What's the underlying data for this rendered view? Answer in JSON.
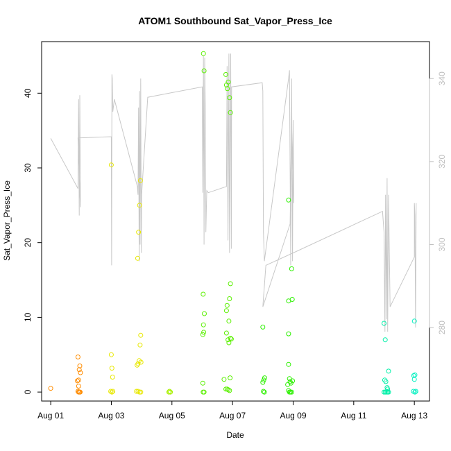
{
  "chart_data": {
    "type": "scatter",
    "title": "ATOM1 Southbound Sat_Vapor_Press_Ice",
    "xlabel": "Date",
    "ylabel": "Sat_Vapor_Press_Ice",
    "x_unit": "days since Aug 01",
    "xlim": [
      -0.3,
      12.5
    ],
    "ylim": [
      -1.2,
      46.9
    ],
    "x_ticks": [
      {
        "value": 0,
        "label": "Aug 01"
      },
      {
        "value": 2,
        "label": "Aug 03"
      },
      {
        "value": 4,
        "label": "Aug 05"
      },
      {
        "value": 6,
        "label": "Aug 07"
      },
      {
        "value": 8,
        "label": "Aug 09"
      },
      {
        "value": 10,
        "label": "Aug 11"
      },
      {
        "value": 12,
        "label": "Aug 13"
      }
    ],
    "y_ticks": [
      0,
      10,
      20,
      30,
      40
    ],
    "right_axis": {
      "ylim": [
        262.3,
        348.9
      ],
      "ticks": [
        280,
        300,
        320,
        340
      ],
      "color": "#bfbfbf"
    },
    "grid": false,
    "legend": "none",
    "scatter_series": [
      {
        "color": "#ff8c00",
        "points": [
          [
            0.0,
            0.5
          ],
          [
            0.9,
            4.7
          ],
          [
            0.88,
            1.5
          ],
          [
            0.92,
            1.6
          ],
          [
            0.92,
            0.8
          ],
          [
            0.94,
            3.0
          ],
          [
            0.96,
            3.5
          ],
          [
            0.98,
            2.6
          ],
          [
            0.9,
            0.1
          ],
          [
            0.92,
            0.0
          ],
          [
            0.95,
            0.0
          ],
          [
            0.97,
            0.0
          ]
        ]
      },
      {
        "color": "#e8e800",
        "points": [
          [
            2.0,
            30.4
          ],
          [
            2.0,
            5.0
          ],
          [
            2.02,
            3.2
          ],
          [
            2.04,
            2.0
          ],
          [
            1.98,
            0.1
          ],
          [
            2.02,
            0.0
          ],
          [
            2.05,
            0.1
          ],
          [
            2.87,
            17.9
          ],
          [
            2.9,
            21.4
          ],
          [
            2.93,
            25.0
          ],
          [
            2.96,
            28.3
          ],
          [
            2.85,
            3.6
          ],
          [
            2.88,
            3.8
          ],
          [
            2.92,
            4.2
          ],
          [
            2.98,
            4.0
          ],
          [
            2.95,
            6.3
          ],
          [
            2.97,
            7.6
          ],
          [
            2.83,
            0.1
          ],
          [
            2.88,
            0.1
          ],
          [
            2.93,
            0.0
          ],
          [
            2.97,
            0.0
          ]
        ]
      },
      {
        "color": "#a8f000",
        "points": [
          [
            3.92,
            0.1
          ],
          [
            3.95,
            0.0
          ],
          [
            3.9,
            0.0
          ]
        ]
      },
      {
        "color": "#5af000",
        "points": [
          [
            5.04,
            45.3
          ],
          [
            5.06,
            43.0
          ],
          [
            5.03,
            13.1
          ],
          [
            5.04,
            9.0
          ],
          [
            5.07,
            10.5
          ],
          [
            5.02,
            7.7
          ],
          [
            5.05,
            8.0
          ],
          [
            5.02,
            1.2
          ],
          [
            5.03,
            0.0
          ],
          [
            5.06,
            0.0
          ],
          [
            5.78,
            42.5
          ],
          [
            5.8,
            41.1
          ],
          [
            5.83,
            40.6
          ],
          [
            5.86,
            41.5
          ],
          [
            5.9,
            39.4
          ],
          [
            5.93,
            37.4
          ],
          [
            5.8,
            10.9
          ],
          [
            5.82,
            11.6
          ],
          [
            5.8,
            7.9
          ],
          [
            5.88,
            9.5
          ],
          [
            5.9,
            12.5
          ],
          [
            5.93,
            14.5
          ],
          [
            5.85,
            7.0
          ],
          [
            5.88,
            6.6
          ],
          [
            5.93,
            7.2
          ],
          [
            5.96,
            7.1
          ],
          [
            5.72,
            1.7
          ],
          [
            5.92,
            1.9
          ],
          [
            5.78,
            0.4
          ],
          [
            5.82,
            0.4
          ],
          [
            5.86,
            0.3
          ],
          [
            5.9,
            0.2
          ]
        ]
      },
      {
        "color": "#2cf000",
        "points": [
          [
            7.0,
            8.7
          ],
          [
            7.0,
            1.3
          ],
          [
            7.03,
            1.6
          ],
          [
            7.06,
            1.9
          ],
          [
            7.02,
            0.1
          ],
          [
            7.05,
            0.0
          ],
          [
            7.85,
            25.7
          ],
          [
            7.95,
            16.5
          ],
          [
            7.85,
            12.2
          ],
          [
            7.97,
            12.4
          ],
          [
            7.85,
            7.8
          ],
          [
            7.85,
            3.7
          ],
          [
            7.82,
            1.0
          ],
          [
            7.88,
            1.8
          ],
          [
            7.9,
            1.4
          ],
          [
            7.93,
            1.2
          ],
          [
            7.98,
            1.5
          ],
          [
            7.85,
            0.2
          ],
          [
            7.88,
            0.0
          ],
          [
            7.91,
            0.0
          ],
          [
            7.95,
            0.0
          ]
        ]
      },
      {
        "color": "#00f0a8",
        "points": [
          [
            11.0,
            9.2
          ],
          [
            11.04,
            7.0
          ],
          [
            11.15,
            2.8
          ],
          [
            11.02,
            1.6
          ],
          [
            11.06,
            1.4
          ],
          [
            11.1,
            0.6
          ],
          [
            11.12,
            0.4
          ],
          [
            11.0,
            0.0
          ],
          [
            11.04,
            0.0
          ],
          [
            11.08,
            0.0
          ],
          [
            11.12,
            0.0
          ],
          [
            11.15,
            0.0
          ]
        ]
      },
      {
        "color": "#00f0c0",
        "points": [
          [
            12.0,
            9.5
          ],
          [
            11.98,
            2.2
          ],
          [
            12.02,
            2.3
          ],
          [
            12.0,
            1.7
          ],
          [
            11.97,
            0.1
          ],
          [
            12.02,
            0.0
          ],
          [
            12.05,
            0.1
          ]
        ]
      }
    ],
    "right_line": [
      [
        0.0,
        325.6
      ],
      [
        0.9,
        313.5
      ],
      [
        0.92,
        335.0
      ],
      [
        0.94,
        307.0
      ],
      [
        0.96,
        336.0
      ],
      [
        0.98,
        309.0
      ],
      [
        0.9,
        325.7
      ],
      [
        2.0,
        326.0
      ],
      [
        2.01,
        295.0
      ],
      [
        2.02,
        341.0
      ],
      [
        2.03,
        340.0
      ],
      [
        2.05,
        332.0
      ],
      [
        2.1,
        335.0
      ],
      [
        2.86,
        314.0
      ],
      [
        2.88,
        312.0
      ],
      [
        2.9,
        333.0
      ],
      [
        2.92,
        296.0
      ],
      [
        2.93,
        337.0
      ],
      [
        2.95,
        300.0
      ],
      [
        2.97,
        340.0
      ],
      [
        2.99,
        298.0
      ],
      [
        3.0,
        312.0
      ],
      [
        3.2,
        335.5
      ],
      [
        5.0,
        338.0
      ],
      [
        5.02,
        312.5
      ],
      [
        5.04,
        345.5
      ],
      [
        5.06,
        300.0
      ],
      [
        5.08,
        345.0
      ],
      [
        5.1,
        333.0
      ],
      [
        5.12,
        303.0
      ],
      [
        5.15,
        313.0
      ],
      [
        5.2,
        312.5
      ],
      [
        5.8,
        314.0
      ],
      [
        5.82,
        343.0
      ],
      [
        5.85,
        301.0
      ],
      [
        5.88,
        346.0
      ],
      [
        5.9,
        298.0
      ],
      [
        5.94,
        346.0
      ],
      [
        5.96,
        299.0
      ],
      [
        5.97,
        338.0
      ],
      [
        6.98,
        339.0
      ],
      [
        7.0,
        337.0
      ],
      [
        7.02,
        303.0
      ],
      [
        7.05,
        296.0
      ],
      [
        7.85,
        340.0
      ],
      [
        7.88,
        342.0
      ],
      [
        7.92,
        295.0
      ],
      [
        7.95,
        340.0
      ],
      [
        7.98,
        296.0
      ],
      [
        8.0,
        330.0
      ],
      [
        8.02,
        310.0
      ],
      [
        7.95,
        330.0
      ],
      [
        7.9,
        305.0
      ],
      [
        7.0,
        285.0
      ],
      [
        7.1,
        295.0
      ],
      [
        8.0,
        298.0
      ],
      [
        10.95,
        308.0
      ],
      [
        11.0,
        303.0
      ],
      [
        11.03,
        279.0
      ],
      [
        11.05,
        312.0
      ],
      [
        11.08,
        282.0
      ],
      [
        11.1,
        316.0
      ],
      [
        11.12,
        279.0
      ],
      [
        11.15,
        312.0
      ],
      [
        11.2,
        285.0
      ],
      [
        12.0,
        297.0
      ],
      [
        12.0,
        310.0
      ],
      [
        12.02,
        307.0
      ],
      [
        12.04,
        280.0
      ],
      [
        12.06,
        310.0
      ]
    ]
  }
}
